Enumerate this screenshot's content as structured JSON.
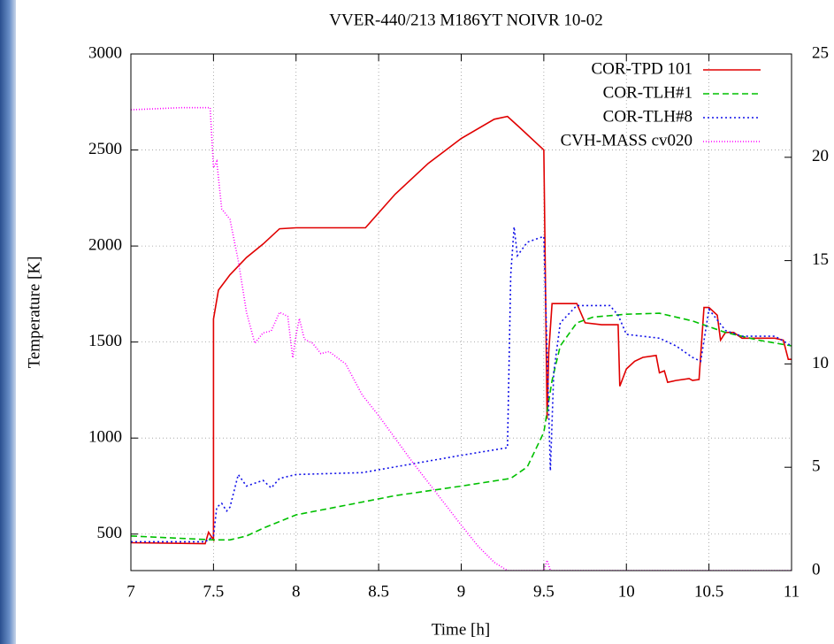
{
  "chart_data": {
    "type": "line",
    "title": "VVER-440/213 M186YT NOIVR 10-02",
    "x_label": "Time [h]",
    "y_label": "Temperature [K]",
    "xlim": [
      7,
      11
    ],
    "xticks": [
      7,
      7.5,
      8,
      8.5,
      9,
      9.5,
      10,
      10.5,
      11
    ],
    "ylim": [
      310,
      3000
    ],
    "yticks": [
      500,
      1000,
      1500,
      2000,
      2500,
      3000
    ],
    "y2lim": [
      0,
      25
    ],
    "y2ticks": [
      0,
      5,
      10,
      15,
      20,
      25
    ],
    "grid": true,
    "legend": "top-right",
    "series": [
      {
        "name": "COR-TPD 101",
        "color": "#e00000",
        "dash": "none",
        "x": [
          7,
          7.45,
          7.47,
          7.5,
          7.5,
          7.53,
          7.6,
          7.7,
          7.8,
          7.9,
          8,
          8.42,
          8.6,
          8.8,
          9,
          9.2,
          9.28,
          9.35,
          9.5,
          9.52,
          9.53,
          9.55,
          9.7,
          9.75,
          9.85,
          9.95,
          9.96,
          10,
          10.05,
          10.1,
          10.18,
          10.2,
          10.23,
          10.25,
          10.3,
          10.38,
          10.4,
          10.44,
          10.47,
          10.5,
          10.55,
          10.57,
          10.6,
          10.65,
          10.7,
          10.8,
          10.9,
          10.95,
          10.98,
          11
        ],
        "values": [
          455,
          450,
          510,
          470,
          1620,
          1770,
          1850,
          1940,
          2010,
          2090,
          2095,
          2095,
          2270,
          2430,
          2560,
          2660,
          2675,
          2620,
          2500,
          1100,
          1450,
          1700,
          1700,
          1600,
          1590,
          1590,
          1270,
          1360,
          1400,
          1420,
          1430,
          1340,
          1350,
          1290,
          1300,
          1310,
          1300,
          1305,
          1680,
          1680,
          1640,
          1510,
          1550,
          1550,
          1520,
          1520,
          1520,
          1510,
          1410,
          1410
        ]
      },
      {
        "name": "COR-TLH#1",
        "color": "#00c000",
        "dash": "7,4",
        "x": [
          7,
          7.5,
          7.6,
          7.7,
          7.8,
          8,
          8.3,
          8.6,
          9,
          9.3,
          9.4,
          9.5,
          9.55,
          9.6,
          9.7,
          9.8,
          10,
          10.2,
          10.4,
          10.6,
          10.8,
          11
        ],
        "values": [
          490,
          470,
          470,
          490,
          530,
          600,
          650,
          700,
          750,
          790,
          850,
          1030,
          1300,
          1480,
          1600,
          1630,
          1645,
          1650,
          1610,
          1550,
          1510,
          1480
        ]
      },
      {
        "name": "COR-TLH#8",
        "color": "#1010e8",
        "dash": "2,3",
        "x": [
          7,
          7.45,
          7.5,
          7.52,
          7.55,
          7.58,
          7.6,
          7.65,
          7.7,
          7.8,
          7.85,
          7.9,
          8,
          8.4,
          9,
          9.28,
          9.3,
          9.32,
          9.34,
          9.4,
          9.5,
          9.52,
          9.54,
          9.56,
          9.6,
          9.7,
          9.9,
          9.95,
          10,
          10.2,
          10.3,
          10.4,
          10.45,
          10.5,
          10.6,
          10.7,
          10.8,
          10.9,
          11
        ],
        "values": [
          460,
          460,
          490,
          640,
          660,
          620,
          640,
          810,
          750,
          780,
          740,
          790,
          810,
          820,
          910,
          950,
          1850,
          2100,
          1950,
          2020,
          2050,
          1450,
          830,
          1340,
          1600,
          1690,
          1690,
          1640,
          1540,
          1520,
          1480,
          1420,
          1400,
          1670,
          1560,
          1530,
          1530,
          1530,
          1480
        ]
      },
      {
        "name": "CVH-MASS cv020",
        "color": "#ff00ff",
        "dash": "1,2",
        "axis": "y2",
        "x": [
          7,
          7.3,
          7.48,
          7.5,
          7.52,
          7.55,
          7.6,
          7.65,
          7.7,
          7.75,
          7.8,
          7.85,
          7.9,
          7.95,
          7.98,
          8,
          8.02,
          8.05,
          8.1,
          8.15,
          8.2,
          8.3,
          8.4,
          8.5,
          8.7,
          9,
          9.1,
          9.2,
          9.28,
          9.5,
          9.52,
          9.54,
          11
        ],
        "values": [
          22.3,
          22.4,
          22.4,
          19.5,
          19.8,
          17.5,
          17,
          15,
          12.5,
          11,
          11.5,
          11.6,
          12.5,
          12.3,
          10.3,
          11.4,
          12.2,
          11.2,
          11,
          10.5,
          10.6,
          10,
          8.5,
          7.5,
          5.3,
          2.2,
          1.2,
          0.4,
          0,
          0,
          0.5,
          0,
          0
        ]
      }
    ]
  }
}
